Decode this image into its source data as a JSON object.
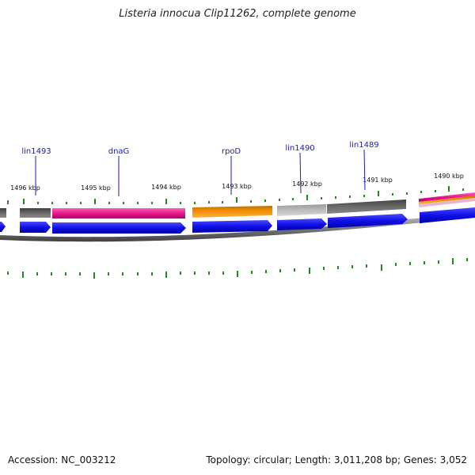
{
  "title": "Listeria innocua Clip11262, complete genome",
  "footer": {
    "accession": "Accession: NC_003212",
    "summary": "Topology: circular; Length: 3,011,208 bp; Genes: 3,052"
  },
  "scale_labels": [
    "1496 kbp",
    "1495 kbp",
    "1494 kbp",
    "1493 kbp",
    "1492 kbp",
    "1491 kbp",
    "1490 kbp"
  ],
  "gene_labels": [
    "lin1493",
    "dnaG",
    "rpoD",
    "lin1490",
    "lin1489"
  ],
  "colors": {
    "cds": "#1010e8",
    "magenta": "#e8188c",
    "orange": "#f08c00",
    "dark_gray": "#606060",
    "light_gray": "#b4b4b4",
    "tick": "#1f8a1f",
    "label_line": "#1a1ab8",
    "backbone": "#808080"
  }
}
